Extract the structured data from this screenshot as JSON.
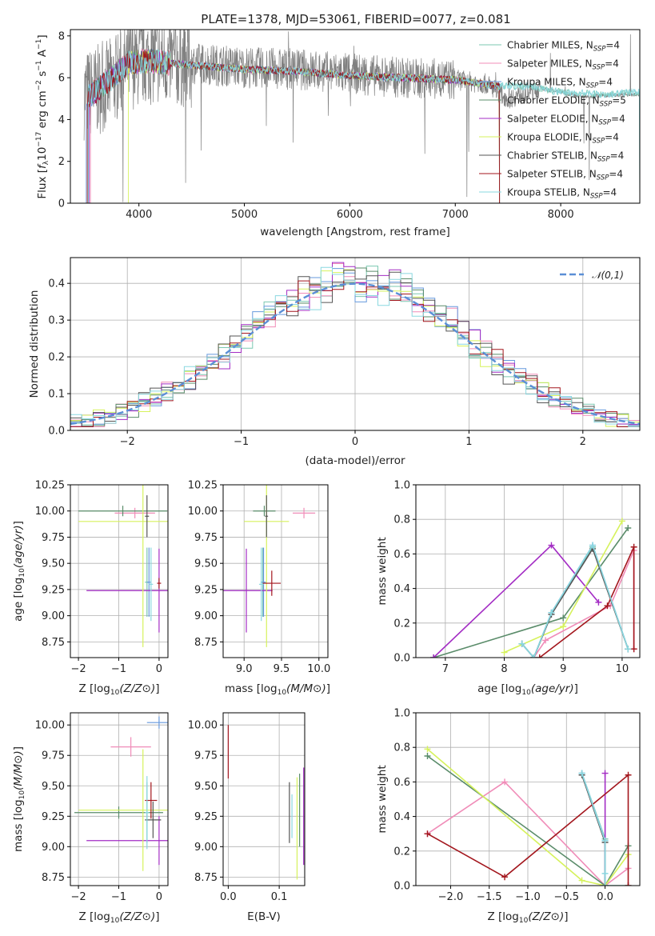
{
  "figure": {
    "title": "PLATE=1378, MJD=53061, FIBERID=0077, z=0.081"
  },
  "series": [
    {
      "name": "Chabrier MILES",
      "nssp": "4",
      "color": "#7bc8b1"
    },
    {
      "name": "Salpeter MILES",
      "nssp": "4",
      "color": "#f08cb8"
    },
    {
      "name": "Kroupa MILES",
      "nssp": "4",
      "color": "#6699dd"
    },
    {
      "name": "Chabrier ELODIE",
      "nssp": "5",
      "color": "#5a8c6a"
    },
    {
      "name": "Salpeter ELODIE",
      "nssp": "4",
      "color": "#a32cc4"
    },
    {
      "name": "Kroupa ELODIE",
      "nssp": "4",
      "color": "#d6f25c"
    },
    {
      "name": "Chabrier STELIB",
      "nssp": "4",
      "color": "#555555"
    },
    {
      "name": "Salpeter STELIB",
      "nssp": "4",
      "color": "#a3161d"
    },
    {
      "name": "Kroupa STELIB",
      "nssp": "4",
      "color": "#8ad8e0"
    }
  ],
  "chart_data": [
    {
      "id": "spectrum",
      "type": "line",
      "xlabel": "wavelength [Angstrom, rest frame]",
      "ylabel": "Flux [f_λ 10^-17 erg cm^-2 s^-1 A^-1]",
      "xlim": [
        3350,
        8750
      ],
      "ylim": [
        0,
        8.3
      ],
      "xticks": [
        4000,
        5000,
        6000,
        7000,
        8000
      ],
      "yticks": [
        0,
        2,
        4,
        6,
        8
      ],
      "data_series": {
        "name": "data",
        "color": "#808080"
      },
      "continuum": [
        [
          3500,
          5.2
        ],
        [
          3700,
          5.6
        ],
        [
          3900,
          6.6
        ],
        [
          4100,
          6.9
        ],
        [
          4500,
          6.7
        ],
        [
          5000,
          6.5
        ],
        [
          5500,
          6.4
        ],
        [
          6000,
          6.2
        ],
        [
          6500,
          6.0
        ],
        [
          7000,
          5.9
        ],
        [
          7300,
          5.7
        ],
        [
          7500,
          5.0
        ],
        [
          7800,
          5.5
        ],
        [
          8200,
          5.1
        ],
        [
          8700,
          5.2
        ]
      ],
      "models_continuum": [
        [
          3500,
          5.0
        ],
        [
          3700,
          5.8
        ],
        [
          3900,
          6.7
        ],
        [
          4100,
          6.8
        ],
        [
          4500,
          6.6
        ],
        [
          5000,
          6.4
        ],
        [
          5500,
          6.3
        ],
        [
          6000,
          6.1
        ],
        [
          6500,
          6.0
        ],
        [
          7000,
          5.9
        ],
        [
          7400,
          5.6
        ],
        [
          7700,
          5.6
        ],
        [
          8000,
          5.3
        ],
        [
          8400,
          5.2
        ],
        [
          8700,
          5.3
        ]
      ],
      "grid": false,
      "legend": "upper-right"
    },
    {
      "id": "residuals",
      "type": "histogram",
      "xlabel": "(data-model)/error",
      "ylabel": "Normed distribution",
      "xlim": [
        -2.5,
        2.5
      ],
      "ylim": [
        0,
        0.47
      ],
      "xticks": [
        -2,
        -1,
        0,
        1,
        2
      ],
      "yticks": [
        0.0,
        0.1,
        0.2,
        0.3,
        0.4
      ],
      "bin_width": 0.1,
      "reference_curve": {
        "label": "𝒩(0,1)",
        "color": "#5b8fd6"
      },
      "grid": true,
      "legend": "upper-right"
    },
    {
      "id": "age-vs-Z",
      "type": "errorbar",
      "xlabel": "Z [log10(Z/Z⊙)]",
      "ylabel": "age [log10(age/yr)]",
      "xlim": [
        -2.2,
        0.22
      ],
      "ylim": [
        8.6,
        10.25
      ],
      "xticks": [
        -2,
        -1,
        0
      ],
      "yticks": [
        8.75,
        9.0,
        9.25,
        9.5,
        9.75,
        10.0,
        10.25
      ],
      "points": [
        {
          "s": 0,
          "x": -0.3,
          "y": 9.32,
          "dx": 0.05,
          "dy": 0.33
        },
        {
          "s": 1,
          "x": -0.6,
          "y": 9.98,
          "dx": 0.5,
          "dy": 0.05
        },
        {
          "s": 2,
          "x": -0.25,
          "y": 9.32,
          "dx": 0.05,
          "dy": 0.33
        },
        {
          "s": 3,
          "x": -0.9,
          "y": 10.0,
          "dx": 1.1,
          "dy": 0.05
        },
        {
          "s": 4,
          "x": 0.0,
          "y": 9.24,
          "dx": 1.8,
          "dy": 0.4
        },
        {
          "s": 5,
          "x": -0.4,
          "y": 9.9,
          "dx": 1.6,
          "dy": 1.2
        },
        {
          "s": 6,
          "x": -0.3,
          "y": 9.95,
          "dx": 0.05,
          "dy": 0.2
        },
        {
          "s": 7,
          "x": 0.0,
          "y": 9.31,
          "dx": 0.05,
          "dy": 0.05
        },
        {
          "s": 8,
          "x": -0.2,
          "y": 9.3,
          "dx": 0.05,
          "dy": 0.35
        }
      ],
      "grid": true
    },
    {
      "id": "age-vs-mass",
      "type": "errorbar",
      "xlabel": "mass [log10(M/M⊙)]",
      "ylabel": "",
      "xlim": [
        8.72,
        10.12
      ],
      "ylim": [
        8.6,
        10.25
      ],
      "xticks": [
        9.0,
        9.5,
        10.0
      ],
      "yticks": [
        8.75,
        9.0,
        9.25,
        9.5,
        9.75,
        10.0,
        10.25
      ],
      "points": [
        {
          "s": 0,
          "x": 9.25,
          "y": 9.32,
          "dx": 0.03,
          "dy": 0.33
        },
        {
          "s": 1,
          "x": 9.8,
          "y": 9.98,
          "dx": 0.15,
          "dy": 0.05
        },
        {
          "s": 2,
          "x": 9.26,
          "y": 9.32,
          "dx": 0.03,
          "dy": 0.33
        },
        {
          "s": 3,
          "x": 9.27,
          "y": 10.0,
          "dx": 0.15,
          "dy": 0.05
        },
        {
          "s": 4,
          "x": 9.03,
          "y": 9.24,
          "dx": 0.35,
          "dy": 0.4
        },
        {
          "s": 5,
          "x": 9.3,
          "y": 9.9,
          "dx": 0.3,
          "dy": 1.2
        },
        {
          "s": 6,
          "x": 9.3,
          "y": 9.95,
          "dx": 0.02,
          "dy": 0.2
        },
        {
          "s": 7,
          "x": 9.37,
          "y": 9.31,
          "dx": 0.12,
          "dy": 0.12
        },
        {
          "s": 8,
          "x": 9.23,
          "y": 9.3,
          "dx": 0.03,
          "dy": 0.35
        }
      ],
      "grid": true
    },
    {
      "id": "weight-vs-age",
      "type": "line",
      "xlabel": "age [log10(age/yr)]",
      "ylabel": "mass weight",
      "xlim": [
        6.5,
        10.3
      ],
      "ylim": [
        0,
        1.0
      ],
      "xticks": [
        7,
        8,
        9,
        10
      ],
      "yticks": [
        0.0,
        0.2,
        0.4,
        0.6,
        0.8,
        1.0
      ],
      "grid": true
    },
    {
      "id": "mass-vs-Z",
      "type": "errorbar",
      "xlabel": "Z [log10(Z/Z⊙)]",
      "ylabel": "mass [log10(M/M⊙)]",
      "xlim": [
        -2.2,
        0.22
      ],
      "ylim": [
        8.68,
        10.1
      ],
      "xticks": [
        -2,
        -1,
        0
      ],
      "yticks": [
        8.75,
        9.0,
        9.25,
        9.5,
        9.75,
        10.0
      ],
      "points": [
        {
          "s": 0,
          "x": -0.3,
          "y": 9.28,
          "dx": 0.05,
          "dy": 0.25
        },
        {
          "s": 1,
          "x": -0.7,
          "y": 9.82,
          "dx": 0.5,
          "dy": 0.08
        },
        {
          "s": 2,
          "x": 0.0,
          "y": 10.02,
          "dx": 0.3,
          "dy": 0.05
        },
        {
          "s": 3,
          "x": -1.0,
          "y": 9.28,
          "dx": 1.1,
          "dy": 0.05
        },
        {
          "s": 4,
          "x": 0.0,
          "y": 9.05,
          "dx": 1.8,
          "dy": 0.2
        },
        {
          "s": 5,
          "x": -0.4,
          "y": 9.3,
          "dx": 1.6,
          "dy": 0.5
        },
        {
          "s": 6,
          "x": -0.15,
          "y": 9.22,
          "dx": 0.2,
          "dy": 0.15
        },
        {
          "s": 7,
          "x": -0.2,
          "y": 9.38,
          "dx": 0.15,
          "dy": 0.15
        },
        {
          "s": 8,
          "x": -0.3,
          "y": 9.28,
          "dx": 0.05,
          "dy": 0.3
        }
      ],
      "grid": true
    },
    {
      "id": "mass-vs-ebv",
      "type": "errorbar",
      "xlabel": "E(B-V)",
      "ylabel": "",
      "xlim": [
        -0.01,
        0.15
      ],
      "ylim": [
        8.68,
        10.1
      ],
      "xticks": [
        0.0,
        0.1
      ],
      "yticks": [
        8.75,
        9.0,
        9.25,
        9.5,
        9.75,
        10.0
      ],
      "points": [
        {
          "s": 7,
          "x": 0.0,
          "y": 9.78,
          "dx": 0.0,
          "dy": 0.22
        },
        {
          "s": 6,
          "x": 0.12,
          "y": 9.28,
          "dx": 0.0,
          "dy": 0.25
        },
        {
          "s": 8,
          "x": 0.125,
          "y": 9.25,
          "dx": 0.0,
          "dy": 0.18
        },
        {
          "s": 5,
          "x": 0.135,
          "y": 9.15,
          "dx": 0.0,
          "dy": 0.42
        },
        {
          "s": 3,
          "x": 0.14,
          "y": 9.3,
          "dx": 0.0,
          "dy": 0.3
        },
        {
          "s": 4,
          "x": 0.148,
          "y": 9.25,
          "dx": 0.0,
          "dy": 0.4
        }
      ],
      "grid": true
    },
    {
      "id": "weight-vs-Z",
      "type": "line",
      "xlabel": "Z [log10(Z/Z⊙)]",
      "ylabel": "mass weight",
      "xlim": [
        -2.45,
        0.45
      ],
      "ylim": [
        0,
        1.0
      ],
      "xticks": [
        -2.0,
        -1.5,
        -1.0,
        -0.5,
        0.0
      ],
      "yticks": [
        0.0,
        0.2,
        0.4,
        0.6,
        0.8,
        1.0
      ],
      "grid": true
    }
  ],
  "weights_age": [
    {
      "s": 0,
      "pts": [
        [
          8.3,
          0.08
        ],
        [
          8.5,
          0.0
        ],
        [
          8.8,
          0.26
        ],
        [
          9.5,
          0.64
        ],
        [
          10.1,
          0.05
        ]
      ]
    },
    {
      "s": 1,
      "pts": [
        [
          8.5,
          0.0
        ],
        [
          8.7,
          0.1
        ],
        [
          9.8,
          0.3
        ],
        [
          10.2,
          0.62
        ],
        [
          10.2,
          0.05
        ]
      ]
    },
    {
      "s": 2,
      "pts": [
        [
          8.3,
          0.08
        ],
        [
          8.5,
          0.0
        ],
        [
          8.8,
          0.26
        ],
        [
          9.5,
          0.65
        ],
        [
          10.1,
          0.05
        ]
      ]
    },
    {
      "s": 3,
      "pts": [
        [
          6.8,
          0.0
        ],
        [
          9.0,
          0.23
        ],
        [
          10.1,
          0.75
        ]
      ]
    },
    {
      "s": 4,
      "pts": [
        [
          6.8,
          0.0
        ],
        [
          8.8,
          0.65
        ],
        [
          9.6,
          0.32
        ]
      ]
    },
    {
      "s": 5,
      "pts": [
        [
          8.0,
          0.03
        ],
        [
          9.0,
          0.18
        ],
        [
          10.0,
          0.79
        ]
      ]
    },
    {
      "s": 6,
      "pts": [
        [
          8.3,
          0.08
        ],
        [
          8.5,
          0.0
        ],
        [
          8.8,
          0.25
        ],
        [
          9.5,
          0.63
        ],
        [
          10.1,
          0.05
        ]
      ]
    },
    {
      "s": 7,
      "pts": [
        [
          8.6,
          0.0
        ],
        [
          9.75,
          0.3
        ],
        [
          10.2,
          0.64
        ],
        [
          10.2,
          0.05
        ]
      ]
    },
    {
      "s": 8,
      "pts": [
        [
          8.3,
          0.08
        ],
        [
          8.5,
          0.0
        ],
        [
          8.8,
          0.26
        ],
        [
          9.5,
          0.65
        ],
        [
          10.1,
          0.05
        ]
      ]
    }
  ],
  "weights_Z": [
    {
      "s": 0,
      "pts": [
        [
          -0.3,
          0.65
        ],
        [
          0.0,
          0.27
        ],
        [
          0.0,
          0.0
        ],
        [
          0.3,
          0.0
        ]
      ]
    },
    {
      "s": 1,
      "pts": [
        [
          -2.3,
          0.3
        ],
        [
          -1.3,
          0.6
        ],
        [
          0.0,
          0.0
        ],
        [
          0.3,
          0.1
        ]
      ]
    },
    {
      "s": 2,
      "pts": [
        [
          -0.3,
          0.65
        ],
        [
          0.0,
          0.26
        ],
        [
          0.0,
          0.0
        ]
      ]
    },
    {
      "s": 3,
      "pts": [
        [
          -2.3,
          0.75
        ],
        [
          0.0,
          0.0
        ],
        [
          0.3,
          0.23
        ]
      ]
    },
    {
      "s": 4,
      "pts": [
        [
          0.0,
          0.65
        ],
        [
          0.0,
          0.0
        ]
      ]
    },
    {
      "s": 5,
      "pts": [
        [
          -2.3,
          0.79
        ],
        [
          -0.3,
          0.03
        ],
        [
          0.0,
          0.0
        ],
        [
          0.3,
          0.18
        ]
      ]
    },
    {
      "s": 6,
      "pts": [
        [
          -0.3,
          0.64
        ],
        [
          0.0,
          0.25
        ],
        [
          0.0,
          0.0
        ]
      ]
    },
    {
      "s": 7,
      "pts": [
        [
          -2.3,
          0.3
        ],
        [
          -1.3,
          0.05
        ],
        [
          0.3,
          0.64
        ],
        [
          0.3,
          0.0
        ]
      ]
    },
    {
      "s": 8,
      "pts": [
        [
          -0.3,
          0.65
        ],
        [
          0.0,
          0.26
        ],
        [
          0.0,
          0.07
        ],
        [
          0.0,
          0.0
        ]
      ]
    }
  ]
}
